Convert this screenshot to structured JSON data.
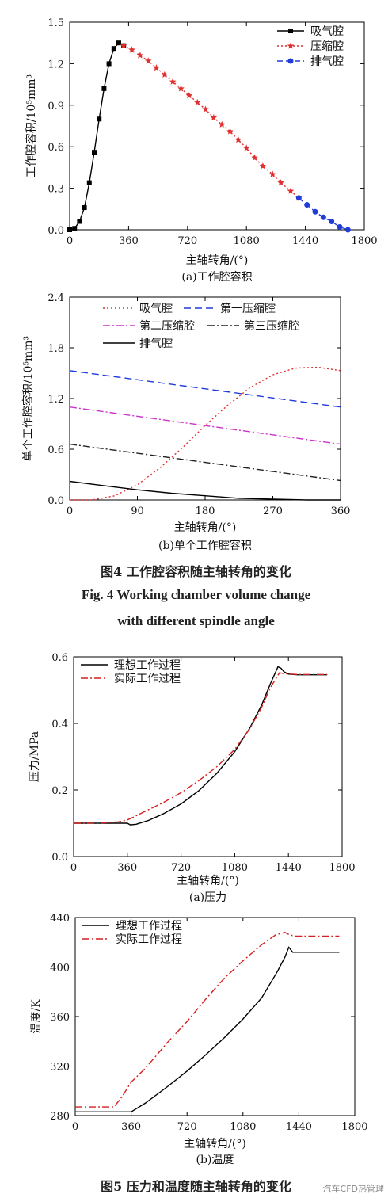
{
  "figures": {
    "fig4": {
      "caption_cn": "图4    工作腔容积随主轴转角的变化",
      "caption_en_1": "Fig. 4    Working chamber volume change",
      "caption_en_2": "with different spindle angle"
    },
    "fig5": {
      "caption_cn": "图5    压力和温度随主轴转角的变化"
    }
  },
  "watermark": "汽车CFD热管理",
  "chart_data": [
    {
      "id": "a1",
      "type": "line",
      "subtitle": "(a)工作腔容积",
      "xlabel": "主轴转角/(°)",
      "ylabel": "工作腔容积/10⁵mm³",
      "xlim": [
        0,
        1800
      ],
      "ylim": [
        0,
        1.5
      ],
      "xticks": [
        0,
        360,
        720,
        1080,
        1440,
        1800
      ],
      "yticks": [
        0.0,
        0.3,
        0.6,
        0.9,
        1.2,
        1.5
      ],
      "tick_labels_y": [
        "0.0",
        "0.3",
        "0.6",
        "0.9",
        "1.2",
        "1.5"
      ],
      "legend_position": "top-right",
      "series": [
        {
          "name": "吸气腔",
          "color": "#000000",
          "dash": "",
          "marker": "square",
          "x": [
            0,
            30,
            60,
            90,
            120,
            150,
            180,
            210,
            240,
            270,
            300,
            330
          ],
          "y": [
            0.0,
            0.01,
            0.06,
            0.16,
            0.34,
            0.56,
            0.8,
            1.02,
            1.2,
            1.31,
            1.35,
            1.33
          ]
        },
        {
          "name": "压缩腔",
          "color": "#e03030",
          "dash": "2,3",
          "marker": "star",
          "x": [
            330,
            380,
            430,
            480,
            530,
            580,
            630,
            680,
            730,
            780,
            830,
            880,
            930,
            980,
            1030,
            1080,
            1130,
            1180,
            1240,
            1290,
            1350,
            1400
          ],
          "y": [
            1.33,
            1.3,
            1.26,
            1.22,
            1.17,
            1.12,
            1.07,
            1.02,
            0.97,
            0.92,
            0.87,
            0.81,
            0.76,
            0.71,
            0.65,
            0.59,
            0.52,
            0.46,
            0.4,
            0.34,
            0.28,
            0.23
          ]
        },
        {
          "name": "排气腔",
          "color": "#1f3bd8",
          "dash": "7,4",
          "marker": "circle",
          "x": [
            1400,
            1450,
            1500,
            1550,
            1600,
            1650,
            1700
          ],
          "y": [
            0.23,
            0.18,
            0.13,
            0.09,
            0.06,
            0.02,
            0.0
          ]
        }
      ]
    },
    {
      "id": "b1",
      "type": "line",
      "subtitle": "(b)单个工作腔容积",
      "xlabel": "主轴转角/(°)",
      "ylabel": "单个工作腔容积/10⁵mm³",
      "xlim": [
        0,
        360
      ],
      "ylim": [
        0,
        2.4
      ],
      "xticks": [
        0,
        90,
        180,
        270,
        360
      ],
      "yticks": [
        0.0,
        0.6,
        1.2,
        1.8,
        2.4
      ],
      "tick_labels_y": [
        "0.0",
        "0.6",
        "1.2",
        "1.8",
        "2.4"
      ],
      "legend_position": "top",
      "series": [
        {
          "name": "吸气腔",
          "color": "#e03030",
          "dash": "2,3",
          "x": [
            0,
            30,
            60,
            90,
            120,
            150,
            180,
            210,
            240,
            270,
            300,
            330,
            360
          ],
          "y": [
            0.0,
            0.0,
            0.05,
            0.18,
            0.38,
            0.62,
            0.88,
            1.12,
            1.33,
            1.48,
            1.56,
            1.57,
            1.53
          ]
        },
        {
          "name": "第一压缩腔",
          "color": "#1f3bd8",
          "dash": "9,5",
          "x": [
            0,
            360
          ],
          "y": [
            1.53,
            1.1
          ]
        },
        {
          "name": "第二压缩腔",
          "color": "#cc33cc",
          "dash": "9,3,2,3",
          "x": [
            0,
            360
          ],
          "y": [
            1.1,
            0.66
          ]
        },
        {
          "name": "第三压缩腔",
          "color": "#222222",
          "dash": "9,3,2,3",
          "x": [
            0,
            360
          ],
          "y": [
            0.66,
            0.23
          ]
        },
        {
          "name": "排气腔",
          "color": "#000000",
          "dash": "",
          "x": [
            0,
            45,
            90,
            135,
            180,
            225,
            270,
            315,
            360
          ],
          "y": [
            0.22,
            0.17,
            0.12,
            0.08,
            0.05,
            0.02,
            0.01,
            0.0,
            0.0
          ]
        }
      ]
    },
    {
      "id": "a2",
      "type": "line",
      "subtitle": "(a)压力",
      "xlabel": "主轴转角/(°)",
      "ylabel": "压力/MPa",
      "xlim": [
        0,
        1800
      ],
      "ylim": [
        0,
        0.6
      ],
      "xticks": [
        0,
        360,
        720,
        1080,
        1440,
        1800
      ],
      "yticks": [
        0.0,
        0.2,
        0.4,
        0.6
      ],
      "tick_labels_y": [
        "0.0",
        "0.2",
        "0.4",
        "0.6"
      ],
      "legend_position": "top-left",
      "series": [
        {
          "name": "理想工作过程",
          "color": "#000000",
          "dash": "",
          "x": [
            0,
            360,
            380,
            420,
            500,
            600,
            720,
            840,
            960,
            1080,
            1180,
            1260,
            1320,
            1370,
            1390,
            1410,
            1440,
            1500,
            1700
          ],
          "y": [
            0.1,
            0.1,
            0.095,
            0.097,
            0.108,
            0.128,
            0.158,
            0.198,
            0.25,
            0.315,
            0.385,
            0.455,
            0.52,
            0.57,
            0.566,
            0.555,
            0.548,
            0.546,
            0.546
          ]
        },
        {
          "name": "实际工作过程",
          "color": "#d42020",
          "dash": "9,3,2,3",
          "x": [
            0,
            200,
            300,
            360,
            400,
            480,
            600,
            720,
            840,
            960,
            1080,
            1180,
            1260,
            1320,
            1380,
            1420,
            1500,
            1700
          ],
          "y": [
            0.1,
            0.101,
            0.104,
            0.11,
            0.118,
            0.136,
            0.162,
            0.192,
            0.228,
            0.27,
            0.322,
            0.383,
            0.448,
            0.508,
            0.552,
            0.549,
            0.547,
            0.547
          ]
        }
      ]
    },
    {
      "id": "b2",
      "type": "line",
      "subtitle": "(b)温度",
      "xlabel": "主轴转角/(°)",
      "ylabel": "温度/K",
      "xlim": [
        0,
        1800
      ],
      "ylim": [
        280,
        440
      ],
      "xticks": [
        0,
        360,
        720,
        1080,
        1440,
        1800
      ],
      "yticks": [
        280,
        320,
        360,
        400,
        440
      ],
      "tick_labels_y": [
        "280",
        "320",
        "360",
        "400",
        "440"
      ],
      "legend_position": "top-left",
      "series": [
        {
          "name": "理想工作过程",
          "color": "#000000",
          "dash": "",
          "x": [
            0,
            360,
            450,
            600,
            720,
            840,
            960,
            1080,
            1200,
            1300,
            1350,
            1375,
            1400,
            1440,
            1700
          ],
          "y": [
            283,
            283,
            290,
            304,
            316,
            329,
            343,
            358,
            375,
            396,
            408,
            416,
            412,
            412,
            412
          ]
        },
        {
          "name": "实际工作过程",
          "color": "#d42020",
          "dash": "9,3,2,3",
          "x": [
            0,
            250,
            300,
            360,
            450,
            600,
            720,
            840,
            960,
            1080,
            1200,
            1290,
            1350,
            1380,
            1420,
            1480,
            1700
          ],
          "y": [
            287,
            287,
            295,
            307,
            318,
            340,
            356,
            374,
            391,
            405,
            418,
            426,
            428,
            426,
            425,
            425,
            425
          ]
        }
      ]
    }
  ]
}
